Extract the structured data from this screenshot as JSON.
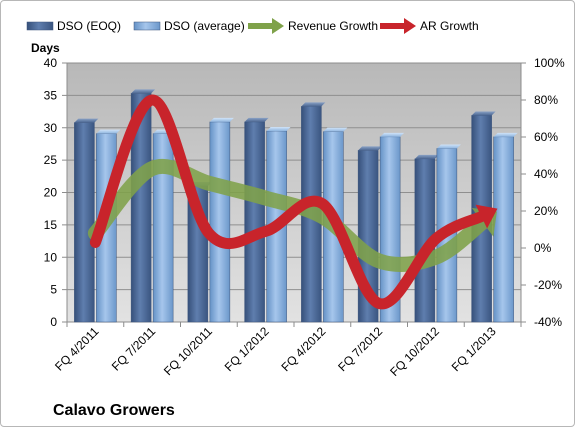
{
  "chart_data": {
    "type": "bar",
    "title": "Calavo Growers",
    "ylabel": "Days",
    "ylim": [
      0,
      40
    ],
    "y2lim": [
      -40,
      100
    ],
    "y_ticks": [
      0,
      5,
      10,
      15,
      20,
      25,
      30,
      35,
      40
    ],
    "y2_ticks": [
      "-40%",
      "-20%",
      "0%",
      "20%",
      "40%",
      "60%",
      "80%",
      "100%"
    ],
    "categories": [
      "FQ 4/2011",
      "FQ 7/2011",
      "FQ 10/2011",
      "FQ 1/2012",
      "FQ 4/2012",
      "FQ 7/2012",
      "FQ 10/2012",
      "FQ 1/2013"
    ],
    "series": [
      {
        "name": "DSO (EOQ)",
        "axis": "left",
        "kind": "bar",
        "color": "#4a6591",
        "values": [
          30.8,
          35.3,
          21.0,
          30.9,
          33.3,
          26.5,
          25.2,
          31.9
        ]
      },
      {
        "name": "DSO (average)",
        "axis": "left",
        "kind": "bar",
        "color": "#7aa3d4",
        "values": [
          29.1,
          29.1,
          30.9,
          29.5,
          29.4,
          28.6,
          26.8,
          28.6
        ]
      },
      {
        "name": "Revenue Growth",
        "axis": "right",
        "kind": "arrow",
        "color": "#7fa24a",
        "values": [
          8,
          43,
          35,
          27,
          17,
          -7,
          -5,
          18
        ]
      },
      {
        "name": "AR Growth",
        "axis": "right",
        "kind": "arrow",
        "color": "#c8242b",
        "values": [
          3,
          80,
          8,
          9,
          24,
          -30,
          5,
          20
        ]
      }
    ],
    "legend_position": "top",
    "grid": true
  }
}
